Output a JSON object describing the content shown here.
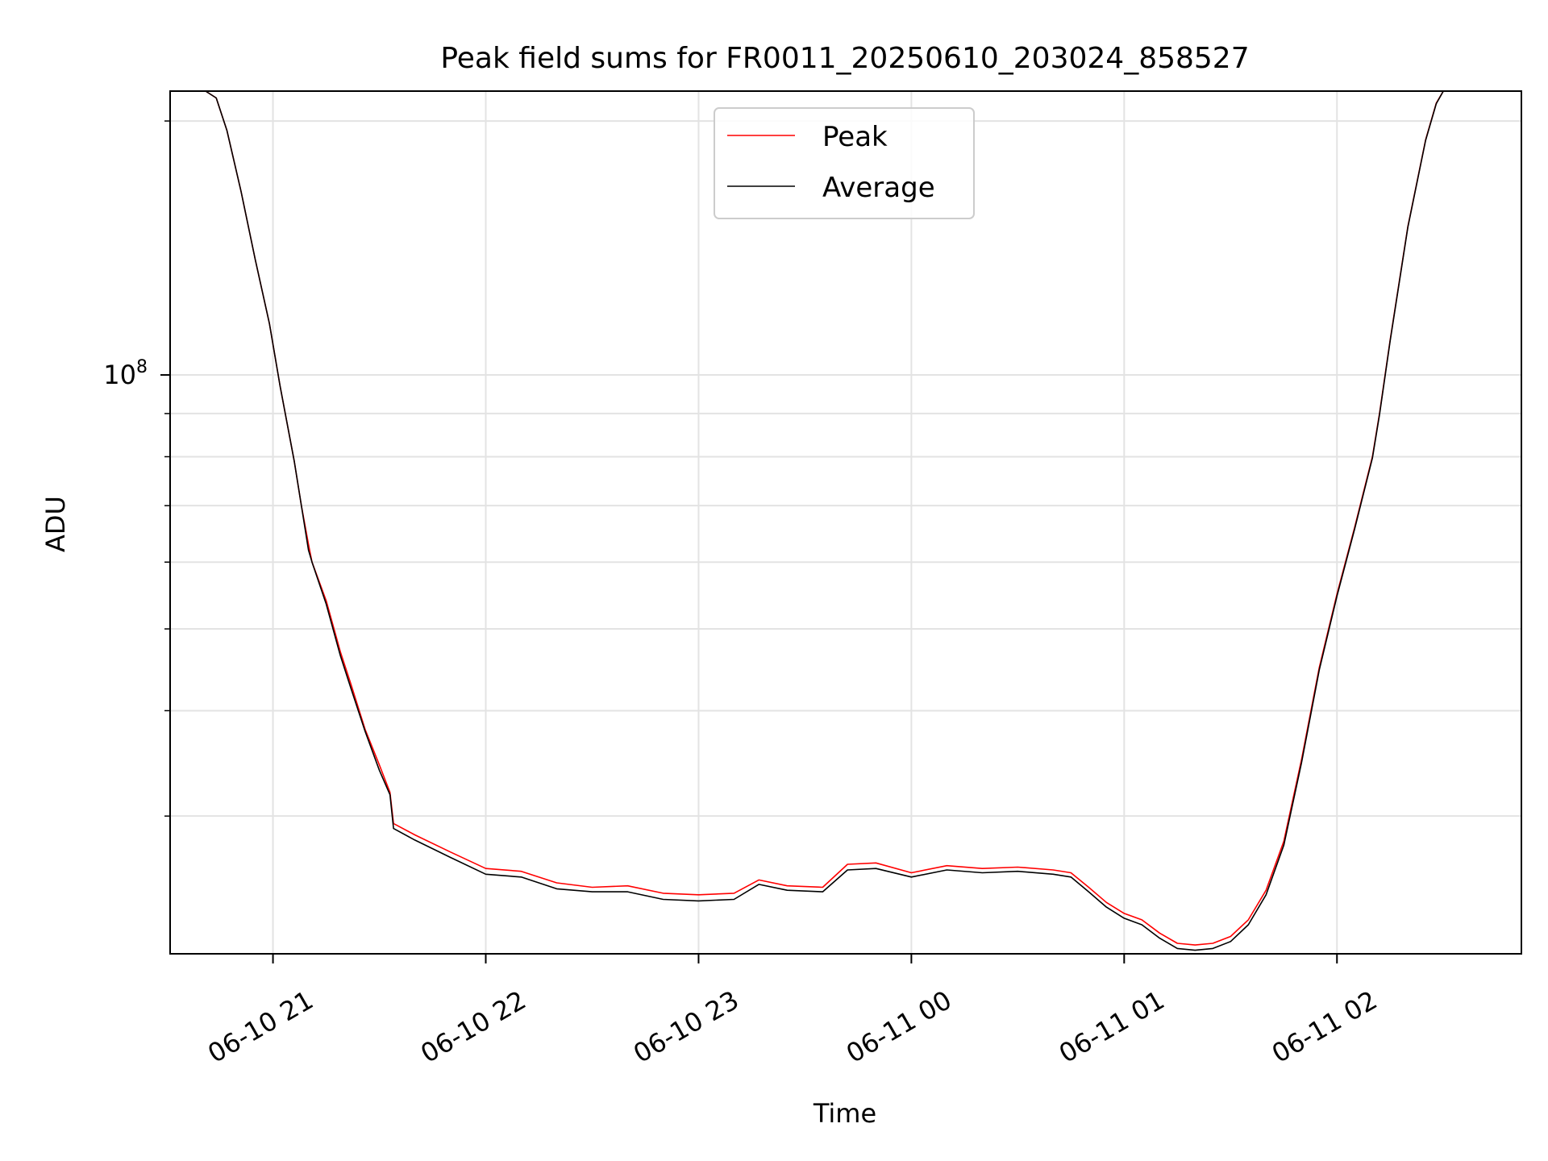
{
  "chart_data": {
    "type": "line",
    "title": "Peak field sums for FR0011_20250610_203024_858527",
    "xlabel": "Time",
    "ylabel": "ADU",
    "yscale": "log",
    "grid": true,
    "legend_position": "top-center",
    "x_range": [
      "2025-06-10 20:31",
      "2025-06-11 02:52"
    ],
    "ylim": [
      20600000,
      217000000
    ],
    "x_ticks": [
      {
        "time": "2025-06-10 21:00",
        "label": "06-10 21"
      },
      {
        "time": "2025-06-10 22:00",
        "label": "06-10 22"
      },
      {
        "time": "2025-06-10 23:00",
        "label": "06-10 23"
      },
      {
        "time": "2025-06-11 00:00",
        "label": "06-11 00"
      },
      {
        "time": "2025-06-11 01:00",
        "label": "06-11 01"
      },
      {
        "time": "2025-06-11 02:00",
        "label": "06-11 02"
      }
    ],
    "y_major_ticks": [
      {
        "value": 100000000,
        "base": "10",
        "exp": "8"
      }
    ],
    "y_minor_ticks": [
      30000000,
      40000000,
      50000000,
      60000000,
      70000000,
      80000000,
      90000000,
      200000000
    ],
    "series": [
      {
        "name": "Peak",
        "color": "#ff0000",
        "points": [
          [
            "2025-06-10 20:31",
            217000000
          ],
          [
            "2025-06-10 20:41",
            217000000
          ],
          [
            "2025-06-10 20:44",
            213000000
          ],
          [
            "2025-06-10 20:47",
            195000000
          ],
          [
            "2025-06-10 20:51",
            165000000
          ],
          [
            "2025-06-10 20:55",
            137000000
          ],
          [
            "2025-06-10 20:59",
            115000000
          ],
          [
            "2025-06-10 21:02",
            97000000
          ],
          [
            "2025-06-10 21:06",
            79000000
          ],
          [
            "2025-06-10 21:08",
            70000000
          ],
          [
            "2025-06-10 21:10",
            63000000
          ],
          [
            "2025-06-10 21:11",
            60000000
          ],
          [
            "2025-06-10 21:15",
            54000000
          ],
          [
            "2025-06-10 21:19",
            47000000
          ],
          [
            "2025-06-10 21:22",
            43000000
          ],
          [
            "2025-06-10 21:26",
            38000000
          ],
          [
            "2025-06-10 21:30",
            34500000
          ],
          [
            "2025-06-10 21:33",
            32000000
          ],
          [
            "2025-06-10 21:34",
            29400000
          ],
          [
            "2025-06-10 21:40",
            28500000
          ],
          [
            "2025-06-10 21:50",
            27200000
          ],
          [
            "2025-06-10 22:00",
            26000000
          ],
          [
            "2025-06-10 22:10",
            25800000
          ],
          [
            "2025-06-10 22:20",
            25000000
          ],
          [
            "2025-06-10 22:30",
            24700000
          ],
          [
            "2025-06-10 22:40",
            24800000
          ],
          [
            "2025-06-10 22:50",
            24300000
          ],
          [
            "2025-06-10 23:00",
            24200000
          ],
          [
            "2025-06-10 23:10",
            24300000
          ],
          [
            "2025-06-10 23:17",
            25200000
          ],
          [
            "2025-06-10 23:25",
            24800000
          ],
          [
            "2025-06-10 23:35",
            24700000
          ],
          [
            "2025-06-10 23:42",
            26300000
          ],
          [
            "2025-06-10 23:50",
            26400000
          ],
          [
            "2025-06-11 00:00",
            25700000
          ],
          [
            "2025-06-11 00:10",
            26200000
          ],
          [
            "2025-06-11 00:20",
            26000000
          ],
          [
            "2025-06-11 00:30",
            26100000
          ],
          [
            "2025-06-11 00:40",
            25900000
          ],
          [
            "2025-06-11 00:45",
            25700000
          ],
          [
            "2025-06-11 00:50",
            24700000
          ],
          [
            "2025-06-11 00:55",
            23700000
          ],
          [
            "2025-06-11 01:00",
            23000000
          ],
          [
            "2025-06-11 01:05",
            22600000
          ],
          [
            "2025-06-11 01:10",
            21800000
          ],
          [
            "2025-06-11 01:15",
            21200000
          ],
          [
            "2025-06-11 01:20",
            21100000
          ],
          [
            "2025-06-11 01:25",
            21200000
          ],
          [
            "2025-06-11 01:30",
            21600000
          ],
          [
            "2025-06-11 01:35",
            22600000
          ],
          [
            "2025-06-11 01:40",
            24500000
          ],
          [
            "2025-06-11 01:45",
            28000000
          ],
          [
            "2025-06-11 01:50",
            35000000
          ],
          [
            "2025-06-11 01:55",
            45000000
          ],
          [
            "2025-06-11 02:00",
            55000000
          ],
          [
            "2025-06-11 02:05",
            66000000
          ],
          [
            "2025-06-11 02:10",
            80000000
          ],
          [
            "2025-06-11 02:12",
            90000000
          ],
          [
            "2025-06-11 02:15",
            110000000
          ],
          [
            "2025-06-11 02:20",
            150000000
          ],
          [
            "2025-06-11 02:25",
            190000000
          ],
          [
            "2025-06-11 02:28",
            210000000
          ],
          [
            "2025-06-11 02:30",
            217000000
          ],
          [
            "2025-06-11 02:52",
            217000000
          ]
        ]
      },
      {
        "name": "Average",
        "color": "#000000",
        "points": [
          [
            "2025-06-10 20:31",
            217000000
          ],
          [
            "2025-06-10 20:41",
            217000000
          ],
          [
            "2025-06-10 20:44",
            213000000
          ],
          [
            "2025-06-10 20:47",
            195000000
          ],
          [
            "2025-06-10 20:51",
            165000000
          ],
          [
            "2025-06-10 20:55",
            137000000
          ],
          [
            "2025-06-10 20:59",
            115000000
          ],
          [
            "2025-06-10 21:02",
            97000000
          ],
          [
            "2025-06-10 21:06",
            79000000
          ],
          [
            "2025-06-10 21:08",
            70000000
          ],
          [
            "2025-06-10 21:10",
            62000000
          ],
          [
            "2025-06-10 21:11",
            60000000
          ],
          [
            "2025-06-10 21:15",
            53500000
          ],
          [
            "2025-06-10 21:19",
            46500000
          ],
          [
            "2025-06-10 21:22",
            42500000
          ],
          [
            "2025-06-10 21:26",
            37800000
          ],
          [
            "2025-06-10 21:30",
            34000000
          ],
          [
            "2025-06-10 21:33",
            31800000
          ],
          [
            "2025-06-10 21:34",
            29000000
          ],
          [
            "2025-06-10 21:40",
            28100000
          ],
          [
            "2025-06-10 21:50",
            26800000
          ],
          [
            "2025-06-10 22:00",
            25600000
          ],
          [
            "2025-06-10 22:10",
            25400000
          ],
          [
            "2025-06-10 22:20",
            24600000
          ],
          [
            "2025-06-10 22:30",
            24400000
          ],
          [
            "2025-06-10 22:40",
            24400000
          ],
          [
            "2025-06-10 22:50",
            23900000
          ],
          [
            "2025-06-10 23:00",
            23800000
          ],
          [
            "2025-06-10 23:10",
            23900000
          ],
          [
            "2025-06-10 23:17",
            24900000
          ],
          [
            "2025-06-10 23:25",
            24500000
          ],
          [
            "2025-06-10 23:35",
            24400000
          ],
          [
            "2025-06-10 23:42",
            25900000
          ],
          [
            "2025-06-10 23:50",
            26000000
          ],
          [
            "2025-06-11 00:00",
            25400000
          ],
          [
            "2025-06-11 00:10",
            25900000
          ],
          [
            "2025-06-11 00:20",
            25700000
          ],
          [
            "2025-06-11 00:30",
            25800000
          ],
          [
            "2025-06-11 00:40",
            25600000
          ],
          [
            "2025-06-11 00:45",
            25400000
          ],
          [
            "2025-06-11 00:50",
            24400000
          ],
          [
            "2025-06-11 00:55",
            23400000
          ],
          [
            "2025-06-11 01:00",
            22700000
          ],
          [
            "2025-06-11 01:05",
            22300000
          ],
          [
            "2025-06-11 01:10",
            21500000
          ],
          [
            "2025-06-11 01:15",
            20900000
          ],
          [
            "2025-06-11 01:20",
            20800000
          ],
          [
            "2025-06-11 01:25",
            20900000
          ],
          [
            "2025-06-11 01:30",
            21300000
          ],
          [
            "2025-06-11 01:35",
            22300000
          ],
          [
            "2025-06-11 01:40",
            24200000
          ],
          [
            "2025-06-11 01:45",
            27700000
          ],
          [
            "2025-06-11 01:50",
            34700000
          ],
          [
            "2025-06-11 01:55",
            44700000
          ],
          [
            "2025-06-11 02:00",
            54700000
          ],
          [
            "2025-06-11 02:05",
            65700000
          ],
          [
            "2025-06-11 02:10",
            79700000
          ],
          [
            "2025-06-11 02:12",
            89700000
          ],
          [
            "2025-06-11 02:15",
            109700000
          ],
          [
            "2025-06-11 02:20",
            149700000
          ],
          [
            "2025-06-11 02:25",
            189700000
          ],
          [
            "2025-06-11 02:28",
            209700000
          ],
          [
            "2025-06-11 02:30",
            217000000
          ],
          [
            "2025-06-11 02:52",
            217000000
          ]
        ]
      }
    ]
  }
}
